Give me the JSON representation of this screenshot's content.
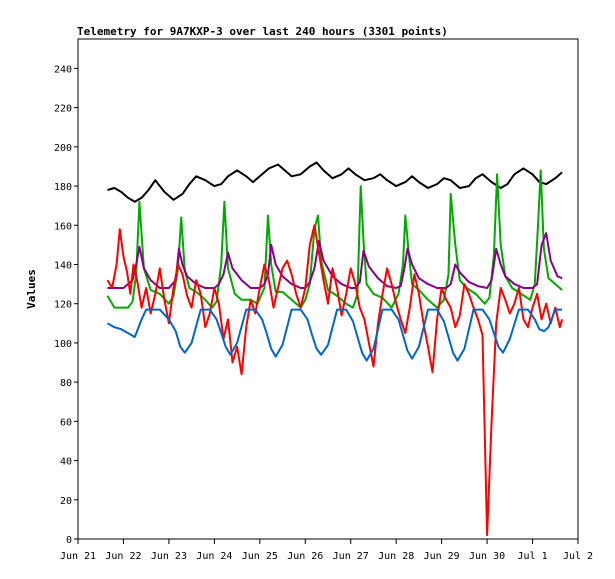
{
  "chart_data": {
    "type": "line",
    "title": "Telemetry for 9A7KXP-3 over last 240 hours (3301 points)",
    "ylabel": "Values",
    "xlabel": "",
    "ylim": [
      0,
      255
    ],
    "y_ticks": [
      0,
      20,
      40,
      60,
      80,
      100,
      120,
      140,
      160,
      180,
      200,
      220,
      240
    ],
    "x_ticks": [
      "Jun 21",
      "Jun 22",
      "Jun 23",
      "Jun 24",
      "Jun 25",
      "Jun 26",
      "Jun 27",
      "Jun 28",
      "Jun 29",
      "Jun 30",
      "Jul 1",
      "Jul 2"
    ],
    "x_unit": "days since Jun 21 00:00",
    "grid": false,
    "series": [
      {
        "color": "#000000",
        "x": [
          0.65,
          0.8,
          0.95,
          1.1,
          1.25,
          1.4,
          1.55,
          1.7,
          1.9,
          2.1,
          2.3,
          2.45,
          2.6,
          2.8,
          3.0,
          3.15,
          3.3,
          3.5,
          3.7,
          3.85,
          4.0,
          4.2,
          4.4,
          4.55,
          4.7,
          4.9,
          5.1,
          5.25,
          5.4,
          5.6,
          5.8,
          5.95,
          6.1,
          6.3,
          6.5,
          6.65,
          6.8,
          7.0,
          7.2,
          7.35,
          7.5,
          7.7,
          7.9,
          8.05,
          8.2,
          8.4,
          8.6,
          8.75,
          8.9,
          9.1,
          9.3,
          9.45,
          9.6,
          9.8,
          10.0,
          10.15,
          10.3,
          10.5,
          10.65
        ],
        "values": [
          178,
          179,
          177,
          174,
          172,
          174,
          178,
          183,
          177,
          173,
          176,
          181,
          185,
          183,
          180,
          181,
          185,
          188,
          185,
          182,
          185,
          189,
          191,
          188,
          185,
          186,
          190,
          192,
          188,
          184,
          186,
          189,
          186,
          183,
          184,
          186,
          183,
          180,
          182,
          185,
          182,
          179,
          181,
          184,
          183,
          179,
          180,
          184,
          186,
          182,
          179,
          181,
          186,
          189,
          186,
          182,
          181,
          184,
          187
        ]
      },
      {
        "color": "#00aa00",
        "x": [
          0.65,
          0.8,
          0.95,
          1.1,
          1.2,
          1.28,
          1.35,
          1.45,
          1.6,
          1.8,
          2.0,
          2.1,
          2.2,
          2.27,
          2.35,
          2.45,
          2.6,
          2.8,
          2.95,
          3.05,
          3.15,
          3.22,
          3.3,
          3.45,
          3.6,
          3.8,
          3.95,
          4.1,
          4.18,
          4.25,
          4.35,
          4.5,
          4.7,
          4.9,
          5.0,
          5.1,
          5.2,
          5.28,
          5.35,
          5.5,
          5.7,
          5.9,
          6.05,
          6.15,
          6.22,
          6.28,
          6.35,
          6.5,
          6.7,
          6.9,
          7.05,
          7.15,
          7.2,
          7.28,
          7.35,
          7.5,
          7.7,
          7.9,
          8.05,
          8.15,
          8.2,
          8.3,
          8.4,
          8.55,
          8.75,
          8.95,
          9.05,
          9.15,
          9.22,
          9.3,
          9.4,
          9.55,
          9.75,
          9.95,
          10.05,
          10.12,
          10.18,
          10.25,
          10.35,
          10.5,
          10.65
        ],
        "values": [
          124,
          118,
          118,
          118,
          121,
          135,
          172,
          138,
          127,
          125,
          120,
          124,
          138,
          164,
          137,
          128,
          126,
          122,
          118,
          121,
          140,
          172,
          138,
          125,
          122,
          122,
          120,
          128,
          165,
          140,
          126,
          126,
          122,
          118,
          122,
          130,
          158,
          165,
          142,
          127,
          124,
          120,
          118,
          125,
          180,
          152,
          130,
          125,
          123,
          118,
          125,
          140,
          165,
          145,
          130,
          127,
          122,
          118,
          122,
          135,
          176,
          150,
          132,
          128,
          125,
          120,
          123,
          145,
          186,
          150,
          134,
          128,
          125,
          122,
          130,
          160,
          188,
          148,
          133,
          130,
          127
        ]
      },
      {
        "color": "#880088",
        "x": [
          0.65,
          1.0,
          1.2,
          1.28,
          1.35,
          1.45,
          1.6,
          1.8,
          2.0,
          2.15,
          2.22,
          2.3,
          2.4,
          2.6,
          2.8,
          3.0,
          3.1,
          3.2,
          3.3,
          3.4,
          3.6,
          3.8,
          4.0,
          4.1,
          4.18,
          4.25,
          4.35,
          4.5,
          4.7,
          4.9,
          5.0,
          5.1,
          5.2,
          5.3,
          5.4,
          5.6,
          5.8,
          6.0,
          6.1,
          6.2,
          6.28,
          6.4,
          6.6,
          6.8,
          7.0,
          7.1,
          7.18,
          7.25,
          7.35,
          7.5,
          7.7,
          7.9,
          8.1,
          8.2,
          8.3,
          8.4,
          8.6,
          8.8,
          9.0,
          9.1,
          9.2,
          9.3,
          9.4,
          9.6,
          9.8,
          10.0,
          10.1,
          10.2,
          10.3,
          10.4,
          10.55,
          10.65
        ],
        "values": [
          128,
          128,
          132,
          140,
          149,
          138,
          132,
          128,
          128,
          132,
          148,
          140,
          134,
          130,
          128,
          128,
          130,
          135,
          146,
          138,
          132,
          128,
          128,
          130,
          135,
          150,
          140,
          134,
          130,
          128,
          128,
          131,
          138,
          152,
          142,
          134,
          130,
          128,
          128,
          131,
          147,
          139,
          133,
          129,
          128,
          129,
          138,
          148,
          140,
          133,
          130,
          128,
          128,
          130,
          140,
          136,
          131,
          129,
          128,
          132,
          148,
          140,
          134,
          130,
          128,
          128,
          130,
          150,
          156,
          142,
          134,
          133
        ]
      },
      {
        "color": "#ff0000",
        "x": [
          0.65,
          0.75,
          0.85,
          0.92,
          1.0,
          1.08,
          1.15,
          1.22,
          1.3,
          1.4,
          1.5,
          1.6,
          1.7,
          1.8,
          1.9,
          2.0,
          2.1,
          2.2,
          2.3,
          2.4,
          2.5,
          2.6,
          2.7,
          2.8,
          2.9,
          3.0,
          3.1,
          3.2,
          3.3,
          3.4,
          3.5,
          3.6,
          3.7,
          3.8,
          3.9,
          4.0,
          4.1,
          4.2,
          4.3,
          4.4,
          4.5,
          4.6,
          4.7,
          4.8,
          4.9,
          5.0,
          5.1,
          5.2,
          5.3,
          5.4,
          5.5,
          5.6,
          5.7,
          5.8,
          5.9,
          6.0,
          6.1,
          6.2,
          6.3,
          6.4,
          6.5,
          6.6,
          6.7,
          6.8,
          6.9,
          7.0,
          7.1,
          7.2,
          7.3,
          7.4,
          7.5,
          7.6,
          7.7,
          7.8,
          7.9,
          8.0,
          8.1,
          8.2,
          8.3,
          8.4,
          8.5,
          8.6,
          8.7,
          8.8,
          8.9,
          9.0,
          9.1,
          9.2,
          9.3,
          9.4,
          9.5,
          9.6,
          9.7,
          9.8,
          9.9,
          10.0,
          10.1,
          10.2,
          10.3,
          10.4,
          10.5,
          10.6,
          10.65
        ],
        "values": [
          132,
          128,
          140,
          158,
          144,
          136,
          125,
          140,
          132,
          118,
          128,
          115,
          125,
          138,
          122,
          110,
          128,
          140,
          135,
          124,
          118,
          132,
          125,
          108,
          115,
          128,
          120,
          102,
          112,
          90,
          98,
          84,
          108,
          122,
          115,
          128,
          140,
          132,
          118,
          128,
          138,
          142,
          135,
          125,
          118,
          128,
          150,
          160,
          146,
          132,
          120,
          138,
          128,
          114,
          125,
          138,
          130,
          118,
          112,
          100,
          88,
          110,
          125,
          138,
          130,
          120,
          112,
          105,
          118,
          135,
          125,
          110,
          98,
          85,
          112,
          128,
          122,
          118,
          108,
          114,
          130,
          125,
          118,
          112,
          104,
          2,
          60,
          110,
          128,
          122,
          115,
          120,
          128,
          112,
          108,
          118,
          125,
          112,
          120,
          110,
          118,
          108,
          112
        ]
      },
      {
        "color": "#0066cc",
        "x": [
          0.65,
          0.8,
          0.95,
          1.1,
          1.25,
          1.4,
          1.5,
          1.6,
          1.7,
          1.8,
          2.0,
          2.15,
          2.25,
          2.35,
          2.5,
          2.7,
          2.9,
          3.05,
          3.15,
          3.25,
          3.35,
          3.5,
          3.7,
          3.9,
          4.05,
          4.15,
          4.25,
          4.35,
          4.5,
          4.7,
          4.9,
          5.05,
          5.15,
          5.25,
          5.35,
          5.5,
          5.7,
          5.9,
          6.05,
          6.15,
          6.25,
          6.35,
          6.5,
          6.7,
          6.9,
          7.05,
          7.15,
          7.25,
          7.35,
          7.5,
          7.7,
          7.9,
          8.05,
          8.15,
          8.25,
          8.35,
          8.5,
          8.7,
          8.9,
          9.05,
          9.15,
          9.25,
          9.35,
          9.5,
          9.7,
          9.9,
          10.05,
          10.15,
          10.25,
          10.35,
          10.5,
          10.65
        ],
        "values": [
          110,
          108,
          107,
          105,
          103,
          112,
          117,
          117,
          117,
          117,
          112,
          106,
          98,
          95,
          100,
          117,
          117,
          112,
          105,
          98,
          94,
          100,
          117,
          117,
          112,
          105,
          97,
          93,
          99,
          117,
          117,
          112,
          104,
          97,
          94,
          99,
          117,
          117,
          111,
          103,
          95,
          91,
          97,
          117,
          117,
          112,
          104,
          96,
          92,
          98,
          117,
          117,
          111,
          103,
          95,
          91,
          97,
          117,
          117,
          112,
          105,
          98,
          95,
          102,
          117,
          117,
          112,
          107,
          106,
          108,
          117,
          117
        ]
      }
    ]
  }
}
